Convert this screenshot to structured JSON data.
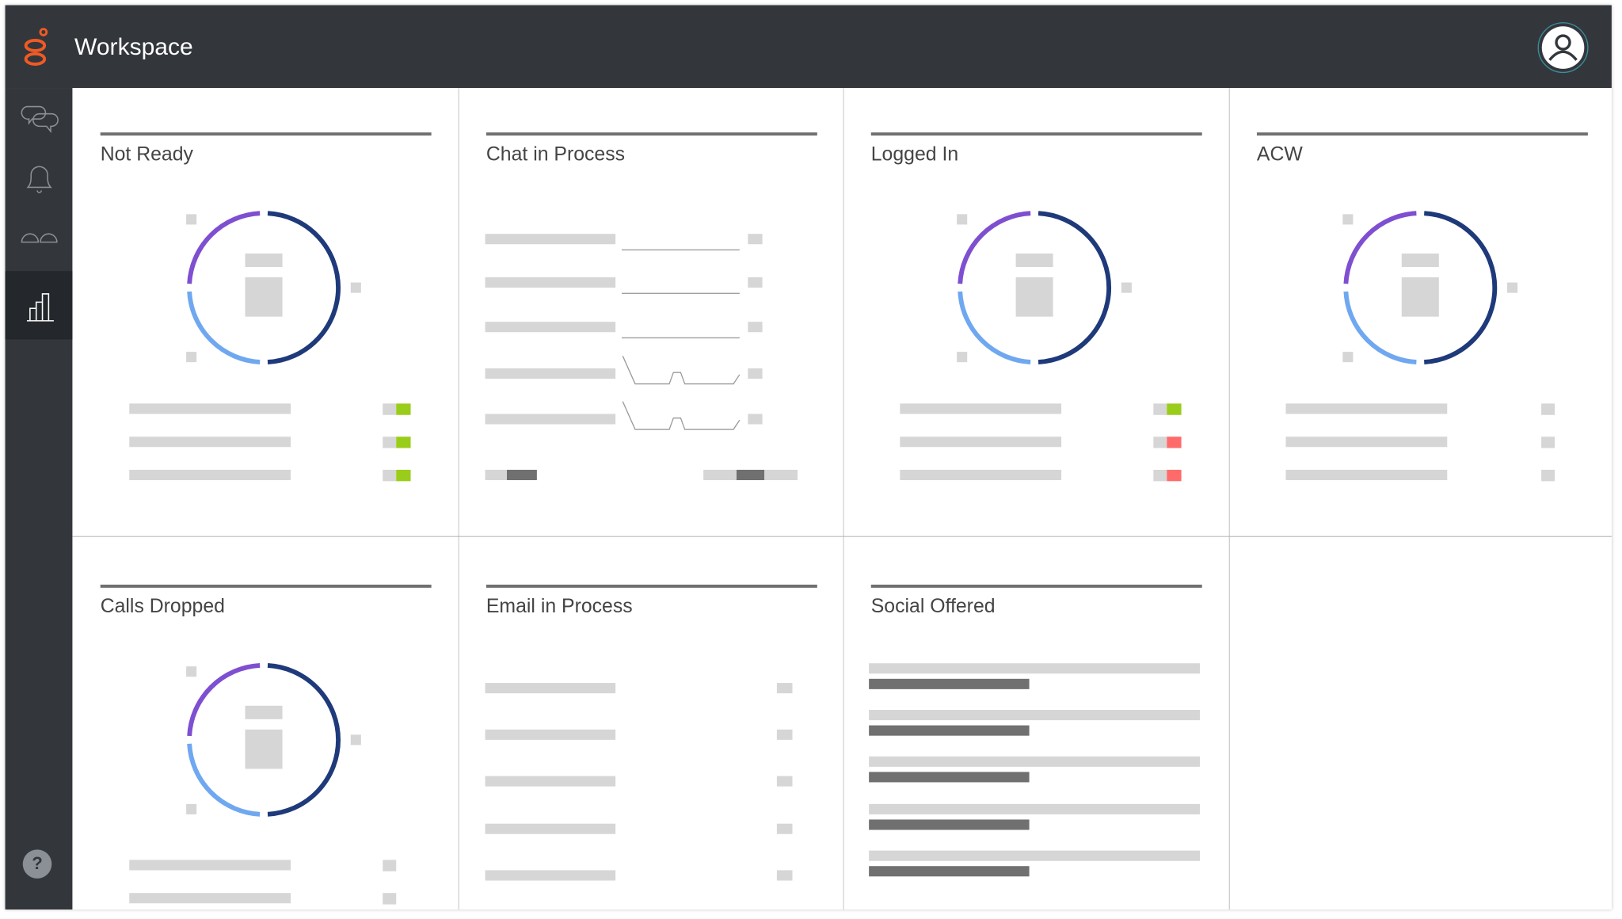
{
  "header": {
    "title": "Workspace",
    "logo_icon": "genesys-logo-icon",
    "avatar_icon": "user-avatar-icon"
  },
  "sidebar": {
    "items": [
      {
        "icon": "chat-bubbles-icon",
        "active": false
      },
      {
        "icon": "bell-icon",
        "active": false
      },
      {
        "icon": "voicemail-icon",
        "active": false
      },
      {
        "icon": "bar-chart-icon",
        "active": true
      }
    ],
    "help_label": "?"
  },
  "colors": {
    "header_bg": "#33373c",
    "brand_orange": "#f05a24",
    "donut_purple": "#7e4fd1",
    "donut_light_blue": "#6fa8f0",
    "donut_navy": "#1f3a7a",
    "status_green": "#9acd1a",
    "status_red": "#ff6b6b",
    "placeholder": "#d6d6d6",
    "placeholder_dark": "#707070"
  },
  "cards": [
    {
      "title": "Not Ready",
      "type": "donut",
      "row_status": [
        "green",
        "green",
        "green"
      ]
    },
    {
      "title": "Chat in Process",
      "type": "sparkline-list"
    },
    {
      "title": "Logged In",
      "type": "donut",
      "row_status": [
        "green",
        "red",
        "red"
      ]
    },
    {
      "title": "ACW",
      "type": "donut",
      "row_status": [
        "none",
        "none",
        "none"
      ]
    },
    {
      "title": "Calls Dropped",
      "type": "donut",
      "row_status": [
        "none",
        "none",
        "none"
      ]
    },
    {
      "title": "Email in Process",
      "type": "list"
    },
    {
      "title": "Social Offered",
      "type": "bars"
    }
  ]
}
